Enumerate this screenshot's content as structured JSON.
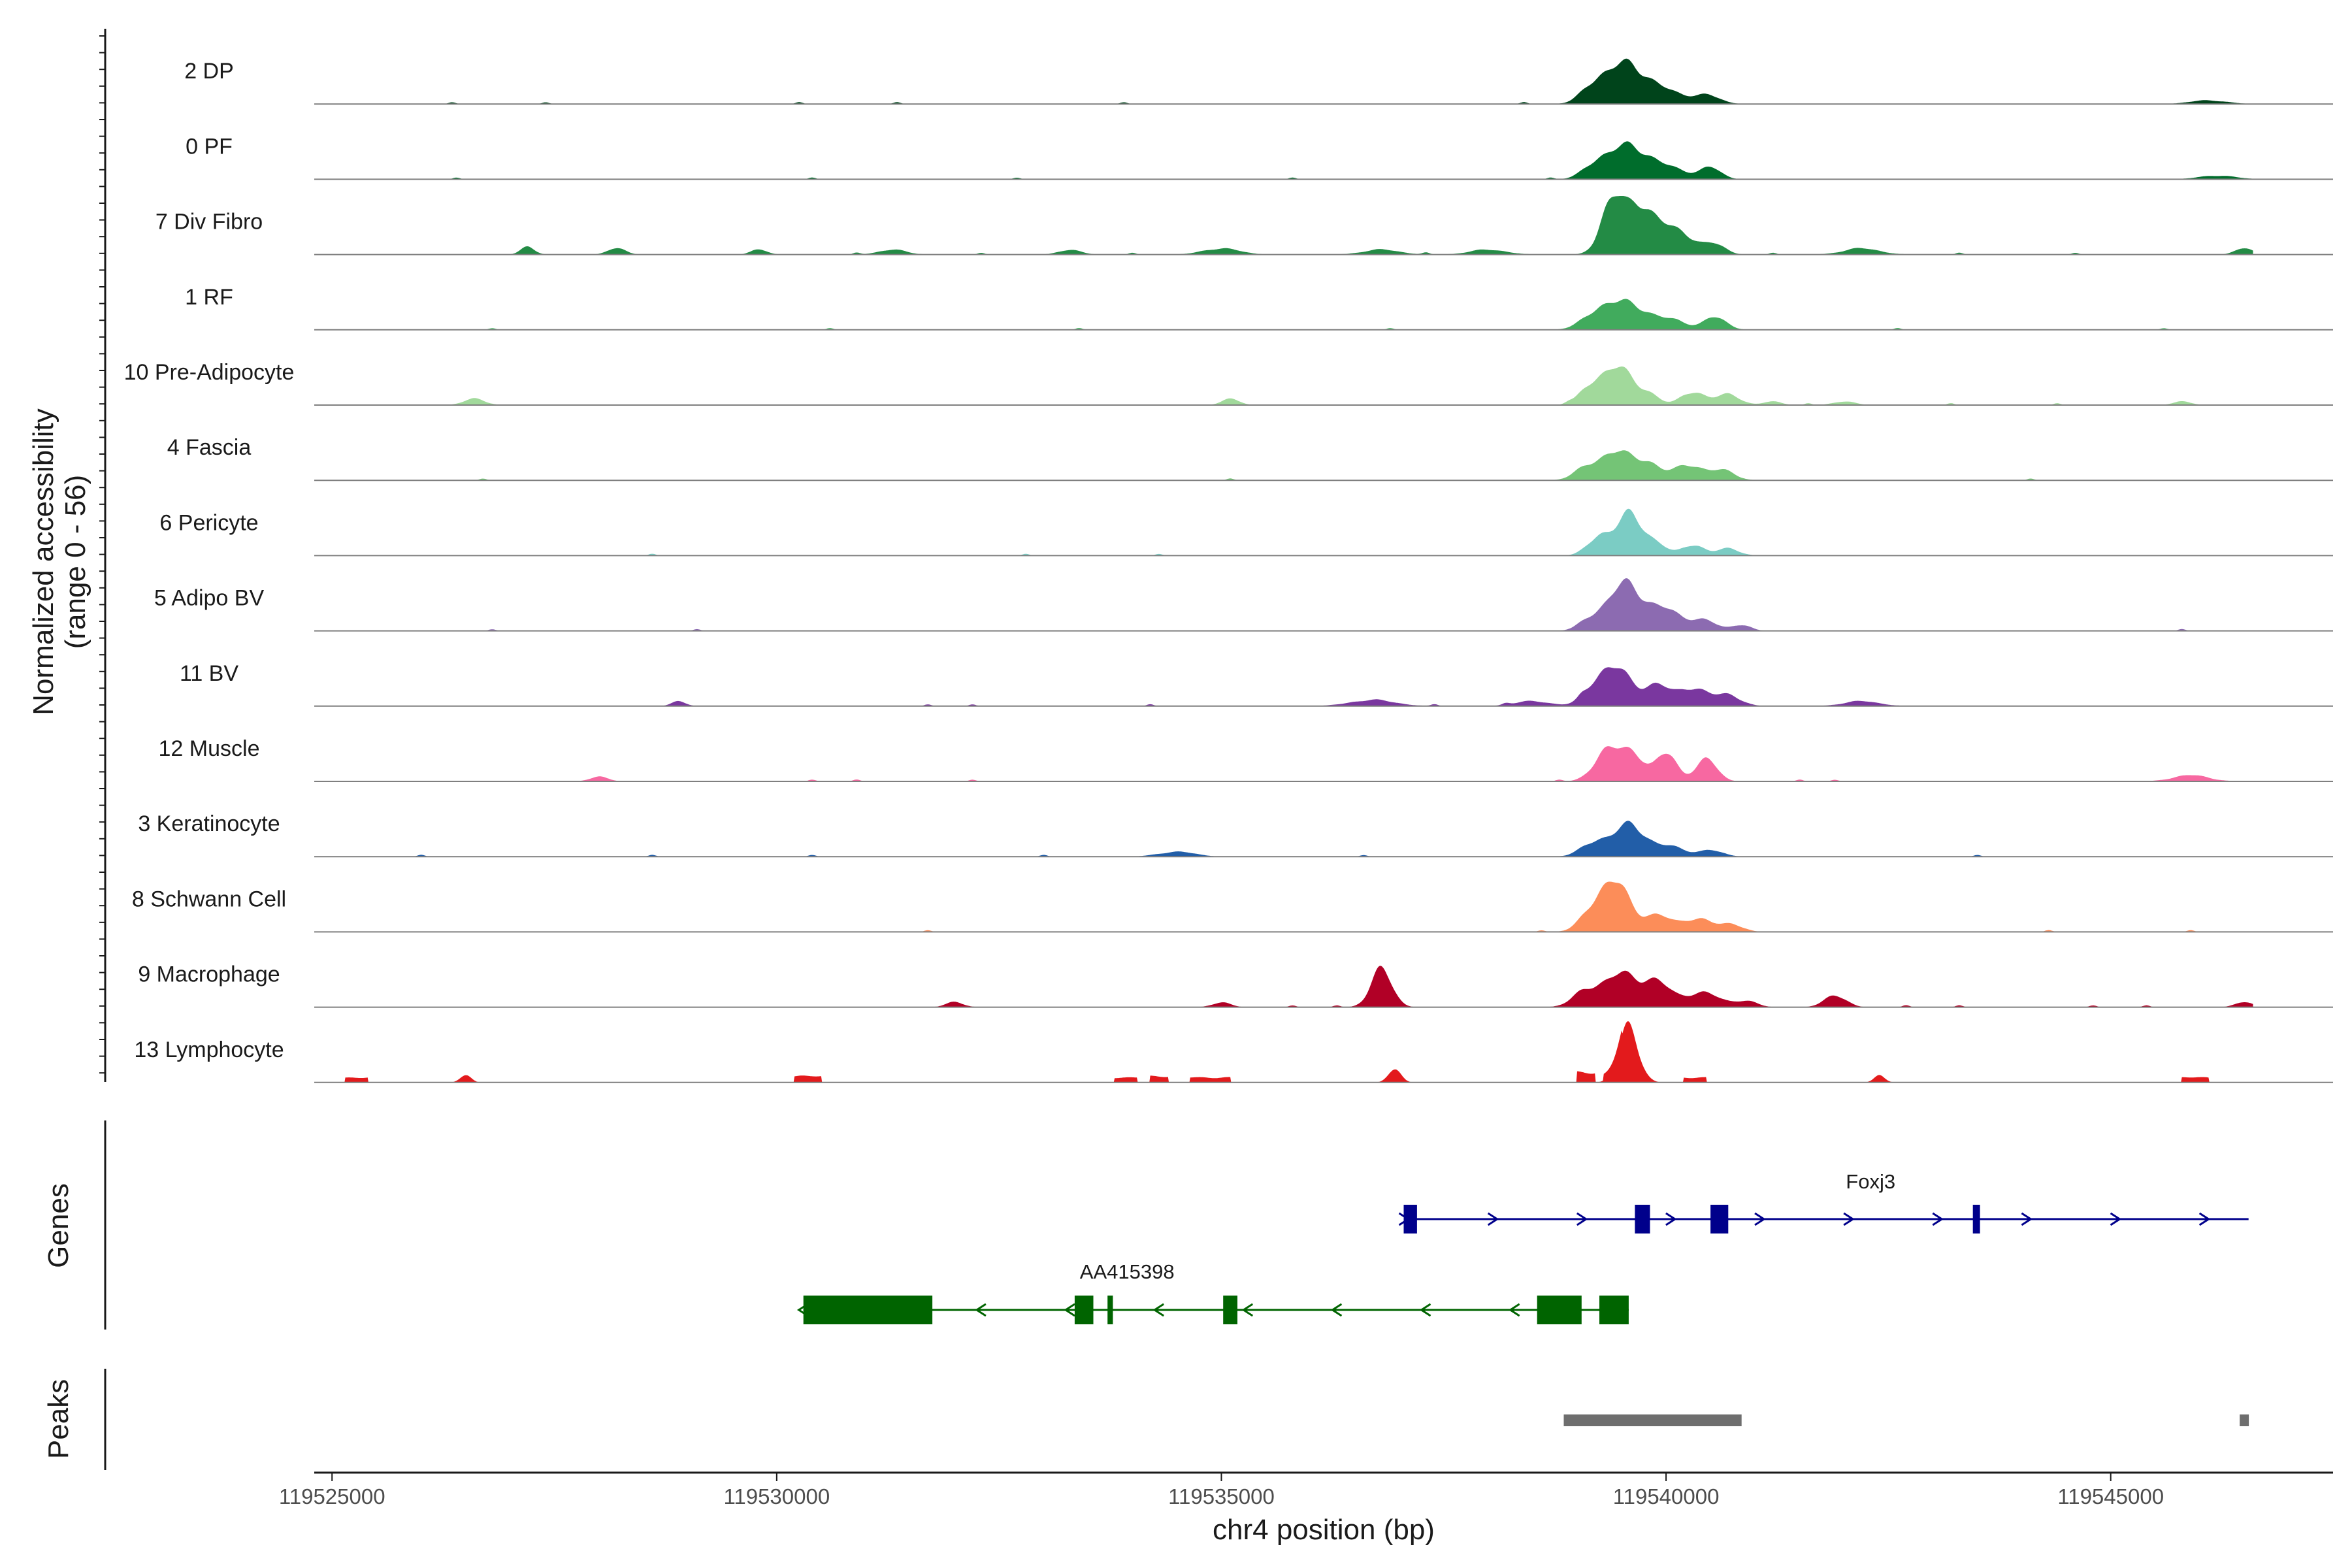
{
  "chart_data": {
    "type": "coverage",
    "title": "",
    "ylabel": "Normalized accessibility\n(range 0 - 56)",
    "y_range": [
      0,
      56
    ],
    "xlabel": "chr4 position (bp)",
    "xlim": [
      119524800,
      119547500
    ],
    "x_ticks": [
      119525000,
      119530000,
      119535000,
      119540000,
      119545000
    ],
    "x_tick_labels": [
      "119525000",
      "119530000",
      "119535000",
      "119540000",
      "119545000"
    ],
    "tracks": [
      {
        "name": "2 DP",
        "color": "#00441b",
        "peaks": [
          [
            119539550,
            32,
            220
          ],
          [
            119539180,
            12,
            140
          ],
          [
            119540000,
            9,
            200
          ],
          [
            119540450,
            7,
            150
          ],
          [
            119546100,
            3,
            200
          ]
        ],
        "blips": [
          119526350,
          119527400,
          119530250,
          119531350,
          119533900,
          119538400
        ]
      },
      {
        "name": "0 PF",
        "color": "#006d2c",
        "peaks": [
          [
            119539580,
            27,
            220
          ],
          [
            119539200,
            10,
            140
          ],
          [
            119540050,
            8,
            200
          ],
          [
            119540500,
            9,
            120
          ],
          [
            119546200,
            3,
            200
          ]
        ],
        "blips": [
          119526400,
          119530400,
          119532700,
          119535800,
          119538700
        ]
      },
      {
        "name": "7 Div Fibro",
        "color": "#238b45",
        "peaks": [
          [
            119539400,
            45,
            130
          ],
          [
            119539680,
            32,
            120
          ],
          [
            119539900,
            22,
            150
          ],
          [
            119540200,
            15,
            150
          ],
          [
            119540550,
            8,
            120
          ],
          [
            119527200,
            6,
            80
          ],
          [
            119528200,
            5,
            100
          ],
          [
            119529800,
            4,
            90
          ],
          [
            119531300,
            4,
            150
          ],
          [
            119533300,
            4,
            120
          ],
          [
            119535000,
            5,
            200
          ],
          [
            119536800,
            4,
            200
          ],
          [
            119538000,
            4,
            200
          ],
          [
            119542200,
            5,
            200
          ],
          [
            119546500,
            5,
            100
          ]
        ],
        "blips": [
          119530900,
          119532300,
          119534000,
          119537300,
          119541200,
          119543300,
          119544600
        ]
      },
      {
        "name": "1 RF",
        "color": "#41ab5d",
        "peaks": [
          [
            119539550,
            22,
            260
          ],
          [
            119539200,
            8,
            150
          ],
          [
            119540550,
            10,
            130
          ],
          [
            119540100,
            6,
            150
          ]
        ],
        "blips": [
          119526800,
          119530600,
          119533400,
          119536900,
          119542600,
          119545600
        ]
      },
      {
        "name": "10 Pre-Adipocyte",
        "color": "#a1d99b",
        "peaks": [
          [
            119539480,
            28,
            160
          ],
          [
            119539180,
            16,
            140
          ],
          [
            119539800,
            8,
            120
          ],
          [
            119540300,
            11,
            130
          ],
          [
            119540700,
            9,
            130
          ],
          [
            119526600,
            5,
            120
          ],
          [
            119535100,
            5,
            100
          ],
          [
            119541200,
            3,
            100
          ],
          [
            119542000,
            3,
            120
          ],
          [
            119545800,
            3,
            100
          ]
        ],
        "blips": [
          119538900,
          119541600,
          119543200,
          119544400
        ]
      },
      {
        "name": "4 Fascia",
        "color": "#74c476",
        "peaks": [
          [
            119539450,
            22,
            200
          ],
          [
            119539800,
            11,
            140
          ],
          [
            119540250,
            13,
            160
          ],
          [
            119540650,
            8,
            130
          ],
          [
            119539100,
            8,
            140
          ]
        ],
        "blips": [
          119526700,
          119535100,
          119544100
        ]
      },
      {
        "name": "6 Pericyte",
        "color": "#7bccc4",
        "peaks": [
          [
            119539600,
            34,
            140
          ],
          [
            119539250,
            16,
            130
          ],
          [
            119539900,
            8,
            120
          ],
          [
            119540300,
            9,
            120
          ],
          [
            119540700,
            6,
            120
          ]
        ],
        "blips": [
          119528600,
          119532800,
          119534300
        ]
      },
      {
        "name": "5 Adipo BV",
        "color": "#8c6bb1",
        "peaks": [
          [
            119539550,
            38,
            200
          ],
          [
            119540000,
            15,
            160
          ],
          [
            119540400,
            9,
            160
          ],
          [
            119540850,
            5,
            100
          ],
          [
            119539150,
            8,
            130
          ]
        ],
        "blips": [
          119526800,
          119529100,
          119545800
        ]
      },
      {
        "name": "11 BV",
        "color": "#7a379f",
        "peaks": [
          [
            119539450,
            28,
            180
          ],
          [
            119539200,
            12,
            140
          ],
          [
            119539900,
            16,
            140
          ],
          [
            119540300,
            15,
            160
          ],
          [
            119540700,
            9,
            140
          ],
          [
            119528900,
            4,
            80
          ],
          [
            119536700,
            5,
            250
          ],
          [
            119538500,
            4,
            200
          ],
          [
            119542200,
            4,
            200
          ]
        ],
        "blips": [
          119531700,
          119532200,
          119534200,
          119537400,
          119538200,
          119539050
        ]
      },
      {
        "name": "12 Muscle",
        "color": "#f768a1",
        "peaks": [
          [
            119539350,
            27,
            150
          ],
          [
            119539650,
            20,
            120
          ],
          [
            119540000,
            22,
            120
          ],
          [
            119540450,
            18,
            120
          ],
          [
            119528000,
            4,
            100
          ],
          [
            119545900,
            5,
            200
          ]
        ],
        "blips": [
          119530400,
          119530900,
          119532200,
          119538800,
          119541500,
          119541900
        ]
      },
      {
        "name": "3 Keratinocyte",
        "color": "#225ea8",
        "peaks": [
          [
            119539600,
            26,
            170
          ],
          [
            119539200,
            12,
            150
          ],
          [
            119540050,
            8,
            160
          ],
          [
            119540500,
            5,
            140
          ],
          [
            119534500,
            4,
            200
          ]
        ],
        "blips": [
          119526000,
          119528600,
          119530400,
          119533000,
          119536600,
          119543500
        ]
      },
      {
        "name": "8 Schwann Cell",
        "color": "#fc8d59",
        "peaks": [
          [
            119539450,
            35,
            160
          ],
          [
            119539200,
            18,
            150
          ],
          [
            119539900,
            13,
            150
          ],
          [
            119540350,
            11,
            170
          ],
          [
            119540750,
            6,
            120
          ]
        ],
        "blips": [
          119531700,
          119538600,
          119544300,
          119545900
        ]
      },
      {
        "name": "9 Macrophage",
        "color": "#b10026",
        "peaks": [
          [
            119536800,
            30,
            120
          ],
          [
            119539500,
            26,
            200
          ],
          [
            119539100,
            12,
            150
          ],
          [
            119539900,
            18,
            150
          ],
          [
            119540400,
            12,
            200
          ],
          [
            119540900,
            5,
            120
          ],
          [
            119541900,
            10,
            120
          ],
          [
            119532000,
            4,
            100
          ],
          [
            119535000,
            4,
            100
          ],
          [
            119546500,
            4,
            100
          ]
        ],
        "blips": [
          119535800,
          119536300,
          119542700,
          119543300,
          119544800,
          119545400
        ]
      },
      {
        "name": "13 Lymphocyte",
        "color": "#e31a1c",
        "peaks": [
          [
            119539580,
            45,
            110
          ],
          [
            119526500,
            6,
            60
          ],
          [
            119536950,
            11,
            70
          ],
          [
            119542400,
            6,
            60
          ]
        ],
        "blocks": [
          [
            119525150,
            119525400,
            4
          ],
          [
            119530200,
            119530500,
            5
          ],
          [
            119533800,
            119534050,
            4
          ],
          [
            119534200,
            119534400,
            5
          ],
          [
            119534650,
            119535100,
            4
          ],
          [
            119539000,
            119539200,
            8
          ],
          [
            119539300,
            119539500,
            5
          ],
          [
            119540200,
            119540450,
            4
          ],
          [
            119545800,
            119546100,
            4
          ]
        ],
        "blips": []
      }
    ],
    "genes_label": "Genes",
    "genes": [
      {
        "name": "Foxj3",
        "strand": "+",
        "color": "#00008b",
        "start": 119537050,
        "end": 119546550,
        "exons": [
          [
            119537050,
            119537200
          ],
          [
            119539650,
            119539820
          ],
          [
            119540500,
            119540700
          ],
          [
            119543450,
            119543530
          ]
        ]
      },
      {
        "name": "AA415398",
        "strand": "-",
        "color": "#006400",
        "start": 119530300,
        "end": 119539580,
        "exons": [
          [
            119530300,
            119531750
          ],
          [
            119533350,
            119533560
          ],
          [
            119533720,
            119533780
          ],
          [
            119535020,
            119535180
          ],
          [
            119538550,
            119539050
          ],
          [
            119539250,
            119539580
          ]
        ]
      }
    ],
    "peaks_label": "Peaks",
    "peak_regions": [
      [
        119538850,
        119540850
      ],
      [
        119546450,
        119546550
      ]
    ]
  }
}
